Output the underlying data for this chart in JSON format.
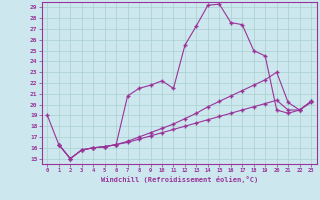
{
  "xlabel": "Windchill (Refroidissement éolien,°C)",
  "background_color": "#cce8ee",
  "grid_color": "#a8d0cc",
  "line_color": "#993399",
  "xlim": [
    -0.5,
    23.5
  ],
  "ylim": [
    14.5,
    29.5
  ],
  "xticks": [
    0,
    1,
    2,
    3,
    4,
    5,
    6,
    7,
    8,
    9,
    10,
    11,
    12,
    13,
    14,
    15,
    16,
    17,
    18,
    19,
    20,
    21,
    22,
    23
  ],
  "yticks": [
    15,
    16,
    17,
    18,
    19,
    20,
    21,
    22,
    23,
    24,
    25,
    26,
    27,
    28,
    29
  ],
  "line1_x": [
    0,
    1,
    2,
    3,
    4,
    5,
    6,
    7,
    8,
    9,
    10,
    11,
    12,
    13,
    14,
    15,
    16,
    17,
    18,
    19,
    20,
    21,
    22,
    23
  ],
  "line1_y": [
    19.0,
    16.3,
    15.0,
    15.8,
    16.0,
    16.1,
    16.3,
    20.8,
    21.5,
    21.8,
    22.2,
    21.5,
    25.5,
    27.3,
    29.2,
    29.3,
    27.6,
    27.4,
    25.0,
    24.5,
    19.5,
    19.2,
    19.5,
    20.2
  ],
  "line2_x": [
    1,
    2,
    3,
    4,
    5,
    6,
    7,
    8,
    9,
    10,
    11,
    12,
    13,
    14,
    15,
    16,
    17,
    18,
    19,
    20,
    21,
    22,
    23
  ],
  "line2_y": [
    16.3,
    15.0,
    15.8,
    16.0,
    16.1,
    16.3,
    16.6,
    17.0,
    17.4,
    17.8,
    18.2,
    18.7,
    19.2,
    19.8,
    20.3,
    20.8,
    21.3,
    21.8,
    22.3,
    23.0,
    20.2,
    19.5,
    20.3
  ],
  "line3_x": [
    1,
    2,
    3,
    4,
    5,
    6,
    7,
    8,
    9,
    10,
    11,
    12,
    13,
    14,
    15,
    16,
    17,
    18,
    19,
    20,
    21,
    22,
    23
  ],
  "line3_y": [
    16.3,
    15.0,
    15.8,
    16.0,
    16.1,
    16.3,
    16.5,
    16.8,
    17.1,
    17.4,
    17.7,
    18.0,
    18.3,
    18.6,
    18.9,
    19.2,
    19.5,
    19.8,
    20.1,
    20.4,
    19.5,
    19.5,
    20.3
  ]
}
